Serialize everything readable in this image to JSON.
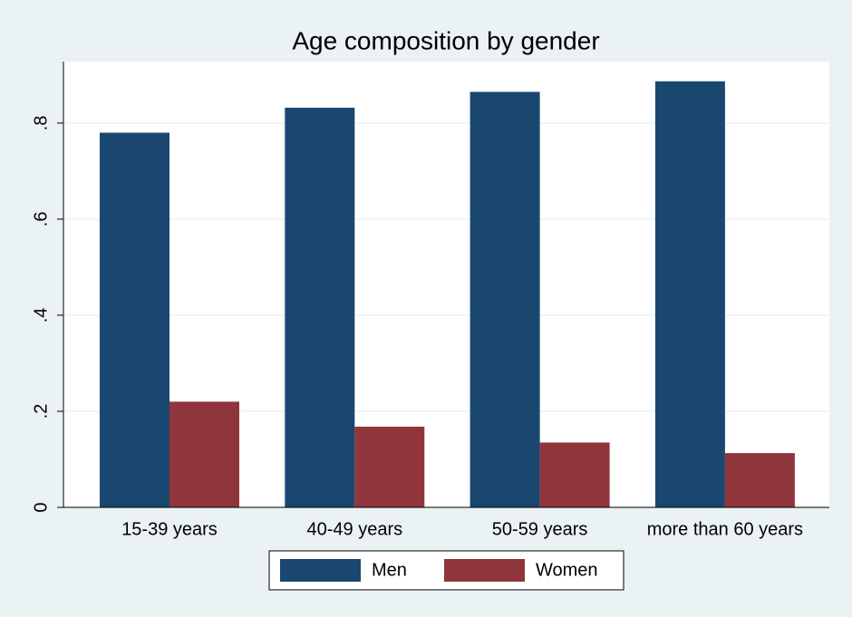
{
  "chart_data": {
    "type": "bar",
    "title": "Age composition by gender",
    "categories": [
      "15-39 years",
      "40-49 years",
      "50-59 years",
      "more than 60 years"
    ],
    "series": [
      {
        "name": "Men",
        "color": "#1a476f",
        "values": [
          0.78,
          0.832,
          0.865,
          0.887
        ]
      },
      {
        "name": "Women",
        "color": "#90353b",
        "values": [
          0.22,
          0.168,
          0.135,
          0.113
        ]
      }
    ],
    "ylim": [
      0,
      0.928
    ],
    "yticks": [
      0,
      {
        "value": 0.2,
        "label": ".2"
      },
      {
        "value": 0.4,
        "label": ".4"
      },
      {
        "value": 0.6,
        "label": ".6"
      },
      {
        "value": 0.8,
        "label": ".8"
      }
    ],
    "grid": true,
    "legend": "bottom"
  }
}
